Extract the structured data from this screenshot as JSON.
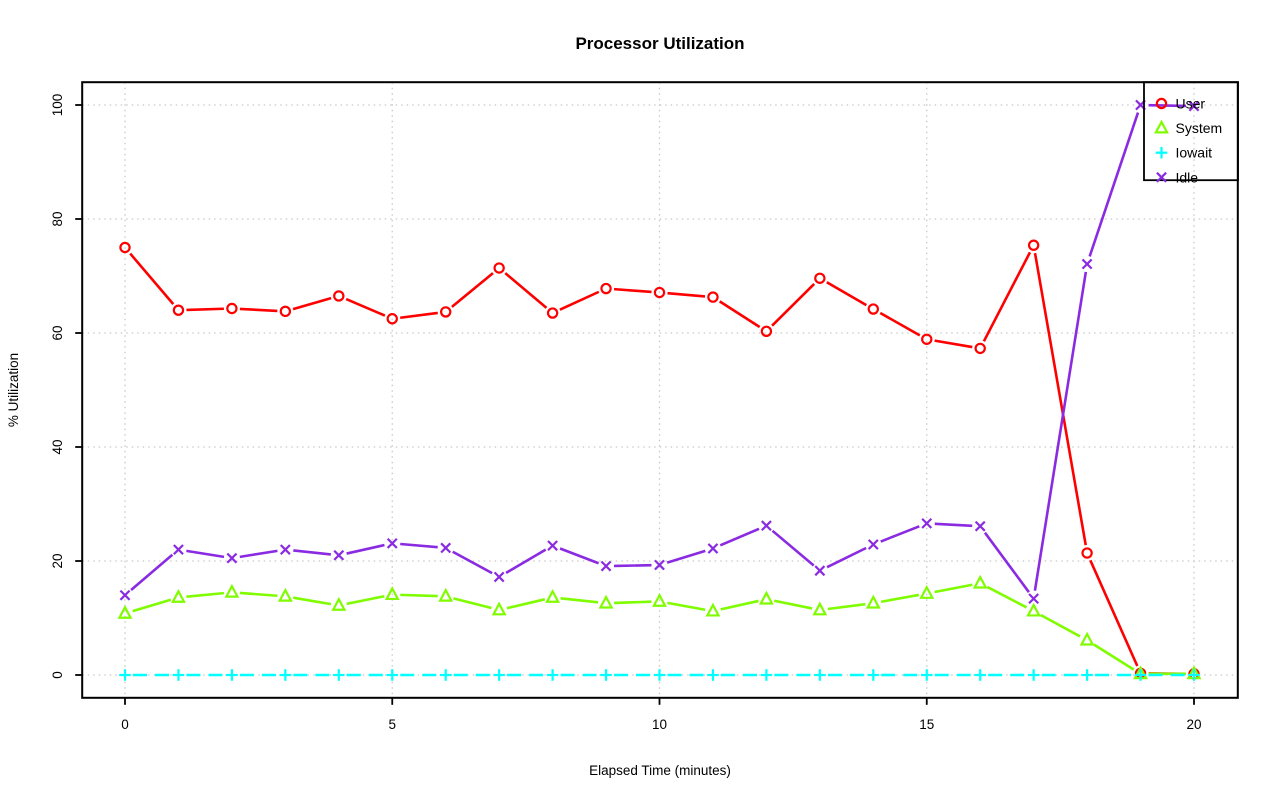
{
  "chart_data": {
    "type": "line",
    "style": "r-base-points-and-lines",
    "title": "Processor Utilization",
    "xlabel": "Elapsed Time (minutes)",
    "ylabel": "% Utilization",
    "xlim": [
      0,
      20
    ],
    "ylim": [
      0,
      100
    ],
    "xticks": [
      0,
      5,
      10,
      15,
      20
    ],
    "yticks": [
      0,
      20,
      40,
      60,
      80,
      100
    ],
    "grid": "dotted-lightgray-at-ticks",
    "grid_color": "#c8c8c8",
    "box_color": "#000000",
    "legend_position": "top-right",
    "x": [
      0,
      1,
      2,
      3,
      4,
      5,
      6,
      7,
      8,
      9,
      10,
      11,
      12,
      13,
      14,
      15,
      16,
      17,
      18,
      19,
      20
    ],
    "series": [
      {
        "name": "User",
        "color": "#ff0000",
        "marker": "circle",
        "dashed": false,
        "values": [
          75.0,
          64.0,
          64.3,
          63.8,
          66.5,
          62.5,
          63.7,
          71.4,
          63.5,
          67.8,
          67.1,
          66.3,
          60.3,
          69.6,
          64.2,
          58.9,
          57.3,
          75.4,
          21.4,
          0.3,
          0.2
        ]
      },
      {
        "name": "System",
        "color": "#80fc00",
        "marker": "triangle",
        "dashed": false,
        "values": [
          10.8,
          13.6,
          14.5,
          13.8,
          12.2,
          14.1,
          13.8,
          11.4,
          13.6,
          12.6,
          12.9,
          11.2,
          13.3,
          11.4,
          12.6,
          14.3,
          16.1,
          11.2,
          6.1,
          0.2,
          0.2
        ]
      },
      {
        "name": "Iowait",
        "color": "#00ffff",
        "marker": "plus",
        "dashed": true,
        "values": [
          0,
          0,
          0,
          0,
          0,
          0,
          0,
          0,
          0,
          0,
          0,
          0,
          0,
          0,
          0,
          0,
          0,
          0,
          0,
          0,
          0
        ]
      },
      {
        "name": "Idle",
        "color": "#8a2be2",
        "marker": "x",
        "dashed": false,
        "values": [
          14.0,
          22.0,
          20.5,
          22.0,
          21.0,
          23.1,
          22.3,
          17.2,
          22.7,
          19.1,
          19.3,
          22.2,
          26.2,
          18.3,
          22.9,
          26.6,
          26.1,
          13.4,
          72.1,
          100.0,
          99.8
        ]
      }
    ]
  }
}
